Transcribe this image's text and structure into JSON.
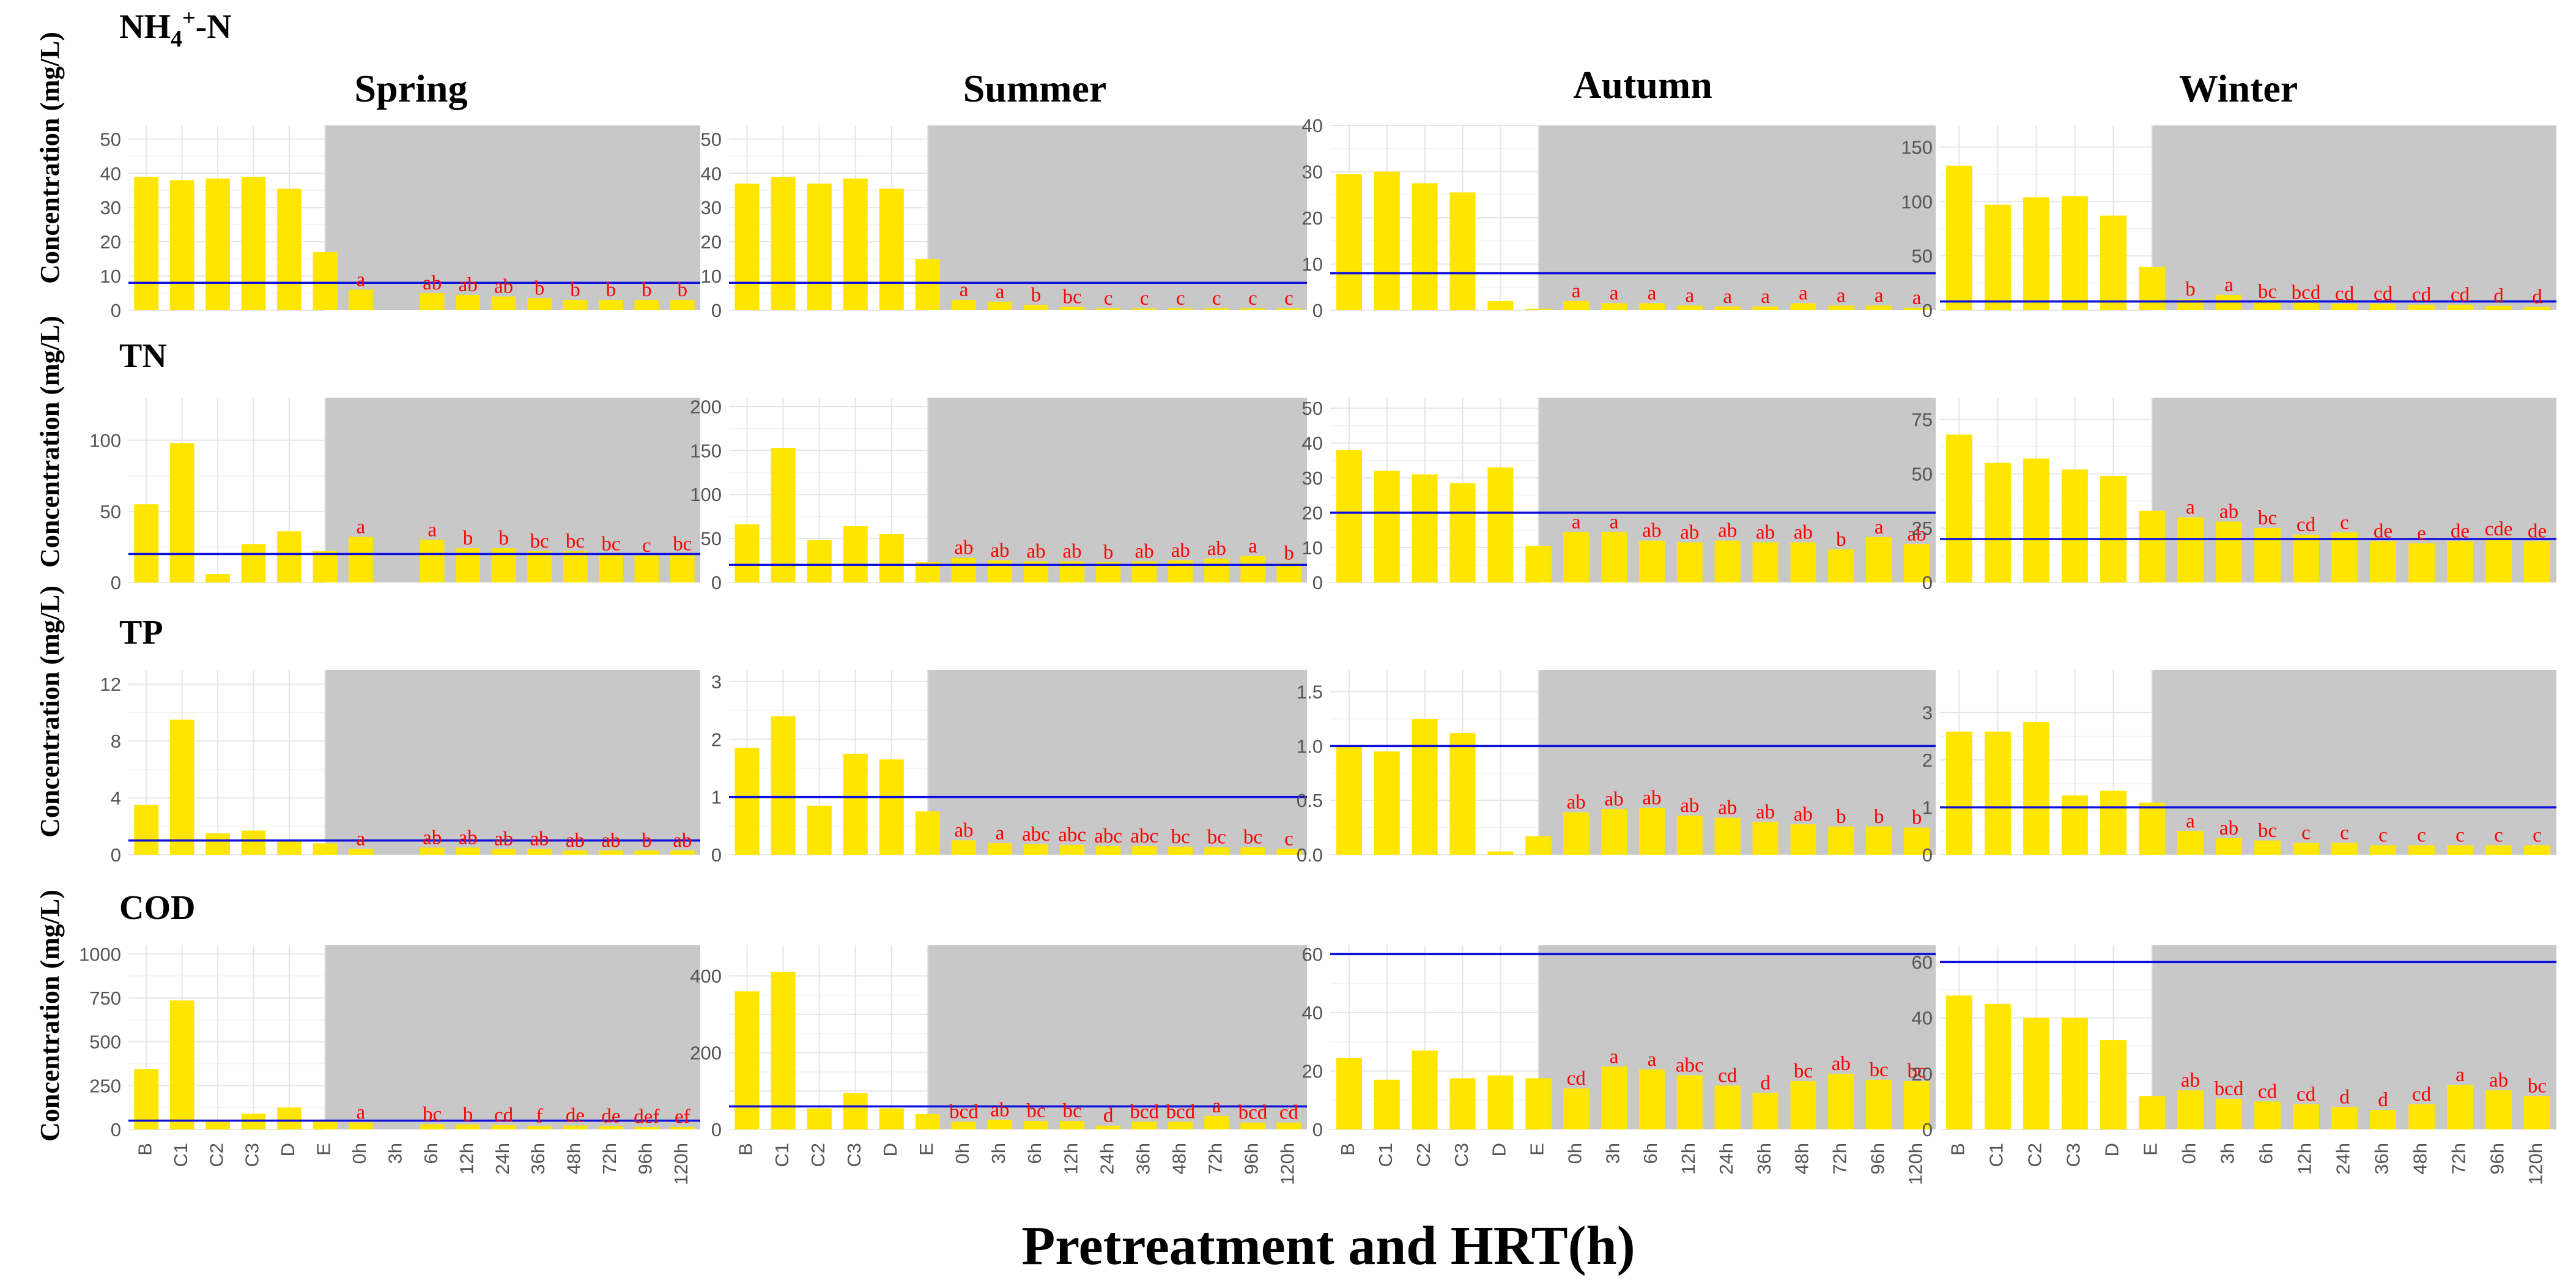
{
  "figure": {
    "seasons": [
      "Spring",
      "Summer",
      "Autumn",
      "Winter"
    ],
    "xlabel": "Pretreatment and HRT(h)",
    "ylabel": "Concentration (mg/L)"
  },
  "colors": {
    "bar": "#ffe600",
    "shade": "#c8c8c8",
    "threshold": "#1010dd",
    "letter": "#ff0000",
    "grid": "#e6e6e6"
  },
  "chart_data": [
    {
      "type": "bar",
      "title": "NH4+-N",
      "categories": [
        "B",
        "C1",
        "C2",
        "C3",
        "D",
        "E",
        "0h",
        "3h",
        "6h",
        "12h",
        "24h",
        "36h",
        "48h",
        "72h",
        "96h",
        "120h"
      ],
      "panels": [
        {
          "season": "Spring",
          "ylim": [
            0,
            54
          ],
          "yticks": [
            0,
            10,
            20,
            30,
            40,
            50
          ],
          "threshold": 8,
          "values": [
            39,
            38,
            38.5,
            39,
            35.5,
            17,
            6,
            0,
            5,
            4.5,
            4,
            3.5,
            3,
            3,
            3,
            3
          ],
          "letters": [
            "",
            "",
            "",
            "",
            "",
            "",
            "a",
            "",
            "ab",
            "ab",
            "ab",
            "b",
            "b",
            "b",
            "b",
            "b"
          ]
        },
        {
          "season": "Summer",
          "ylim": [
            0,
            54
          ],
          "yticks": [
            0,
            10,
            20,
            30,
            40,
            50
          ],
          "threshold": 8,
          "values": [
            37,
            39,
            37,
            38.5,
            35.5,
            15,
            3,
            2.5,
            1.5,
            1,
            0.5,
            0.5,
            0.5,
            0.5,
            0.5,
            0.5
          ],
          "letters": [
            "",
            "",
            "",
            "",
            "",
            "",
            "a",
            "a",
            "b",
            "bc",
            "c",
            "c",
            "c",
            "c",
            "c",
            "c"
          ]
        },
        {
          "season": "Autumn",
          "ylim": [
            0,
            40
          ],
          "yticks": [
            0,
            10,
            20,
            30,
            40
          ],
          "threshold": 8,
          "values": [
            29.5,
            30,
            27.5,
            25.5,
            2,
            0.3,
            2,
            1.5,
            1.5,
            1,
            0.8,
            0.8,
            1.5,
            1,
            1,
            0.5
          ],
          "letters": [
            "",
            "",
            "",
            "",
            "",
            "",
            "a",
            "a",
            "a",
            "a",
            "a",
            "a",
            "a",
            "a",
            "a",
            "a"
          ]
        },
        {
          "season": "Winter",
          "ylim": [
            0,
            170
          ],
          "yticks": [
            0,
            50,
            100,
            150
          ],
          "threshold": 8,
          "values": [
            133,
            97,
            104,
            105,
            87,
            40,
            10,
            14,
            8,
            7,
            6,
            6,
            5,
            5,
            4,
            3
          ],
          "letters": [
            "",
            "",
            "",
            "",
            "",
            "",
            "b",
            "a",
            "bc",
            "bcd",
            "cd",
            "cd",
            "cd",
            "cd",
            "d",
            "d"
          ]
        }
      ]
    },
    {
      "type": "bar",
      "title": "TN",
      "categories": [
        "B",
        "C1",
        "C2",
        "C3",
        "D",
        "E",
        "0h",
        "3h",
        "6h",
        "12h",
        "24h",
        "36h",
        "48h",
        "72h",
        "96h",
        "120h"
      ],
      "panels": [
        {
          "season": "Spring",
          "ylim": [
            0,
            130
          ],
          "yticks": [
            0,
            50,
            100
          ],
          "threshold": 20,
          "values": [
            55,
            98,
            6,
            27,
            36,
            22,
            32,
            0,
            30,
            24,
            24,
            22,
            22,
            20,
            19,
            20
          ],
          "letters": [
            "",
            "",
            "",
            "",
            "",
            "",
            "a",
            "",
            "a",
            "b",
            "b",
            "bc",
            "bc",
            "bc",
            "c",
            "bc"
          ]
        },
        {
          "season": "Summer",
          "ylim": [
            0,
            210
          ],
          "yticks": [
            0,
            50,
            100,
            150,
            200
          ],
          "threshold": 20,
          "values": [
            66,
            153,
            48,
            64,
            55,
            23,
            28,
            25,
            24,
            24,
            23,
            24,
            25,
            27,
            30,
            22
          ],
          "letters": [
            "",
            "",
            "",
            "",
            "",
            "",
            "ab",
            "ab",
            "ab",
            "ab",
            "b",
            "ab",
            "ab",
            "ab",
            "a",
            "b"
          ]
        },
        {
          "season": "Autumn",
          "ylim": [
            0,
            53
          ],
          "yticks": [
            0,
            10,
            20,
            30,
            40,
            50
          ],
          "threshold": 20,
          "values": [
            38,
            32,
            31,
            28.5,
            33,
            10.5,
            14.5,
            14.5,
            12,
            11.5,
            12,
            11.5,
            11.5,
            9.5,
            13,
            11
          ],
          "letters": [
            "",
            "",
            "",
            "",
            "",
            "",
            "a",
            "a",
            "ab",
            "ab",
            "ab",
            "ab",
            "ab",
            "b",
            "a",
            "ab"
          ]
        },
        {
          "season": "Winter",
          "ylim": [
            0,
            85
          ],
          "yticks": [
            0,
            25,
            50,
            75
          ],
          "threshold": 20,
          "values": [
            68,
            55,
            57,
            52,
            49,
            33,
            30,
            28,
            25,
            22,
            23,
            19,
            18,
            19,
            20,
            19
          ],
          "letters": [
            "",
            "",
            "",
            "",
            "",
            "",
            "a",
            "ab",
            "bc",
            "cd",
            "c",
            "de",
            "e",
            "de",
            "cde",
            "de"
          ]
        }
      ]
    },
    {
      "type": "bar",
      "title": "TP",
      "categories": [
        "B",
        "C1",
        "C2",
        "C3",
        "D",
        "E",
        "0h",
        "3h",
        "6h",
        "12h",
        "24h",
        "36h",
        "48h",
        "72h",
        "96h",
        "120h"
      ],
      "panels": [
        {
          "season": "Spring",
          "ylim": [
            0,
            13
          ],
          "yticks": [
            0,
            4,
            8,
            12
          ],
          "threshold": 1,
          "values": [
            3.5,
            9.5,
            1.5,
            1.7,
            1,
            0.8,
            0.4,
            0,
            0.5,
            0.5,
            0.4,
            0.4,
            0.3,
            0.3,
            0.3,
            0.3
          ],
          "letters": [
            "",
            "",
            "",
            "",
            "",
            "",
            "a",
            "",
            "ab",
            "ab",
            "ab",
            "ab",
            "ab",
            "ab",
            "b",
            "ab"
          ]
        },
        {
          "season": "Summer",
          "ylim": [
            0,
            3.2
          ],
          "yticks": [
            0,
            1,
            2,
            3
          ],
          "threshold": 1,
          "values": [
            1.85,
            2.4,
            0.85,
            1.75,
            1.65,
            0.75,
            0.25,
            0.2,
            0.18,
            0.17,
            0.15,
            0.15,
            0.14,
            0.13,
            0.13,
            0.1
          ],
          "letters": [
            "",
            "",
            "",
            "",
            "",
            "",
            "ab",
            "a",
            "abc",
            "abc",
            "abc",
            "abc",
            "bc",
            "bc",
            "bc",
            "c"
          ]
        },
        {
          "season": "Autumn",
          "ylim": [
            0,
            1.7
          ],
          "yticks": [
            0,
            0.5,
            1.0,
            1.5
          ],
          "yticklabels": [
            "0.0",
            "0.5",
            "1.0",
            "1.5"
          ],
          "threshold": 1,
          "values": [
            1.0,
            0.95,
            1.25,
            1.12,
            0.03,
            0.17,
            0.39,
            0.42,
            0.43,
            0.36,
            0.34,
            0.3,
            0.28,
            0.26,
            0.26,
            0.25
          ],
          "letters": [
            "",
            "",
            "",
            "",
            "",
            "",
            "ab",
            "ab",
            "ab",
            "ab",
            "ab",
            "ab",
            "ab",
            "b",
            "b",
            "b"
          ]
        },
        {
          "season": "Winter",
          "ylim": [
            0,
            3.9
          ],
          "yticks": [
            0,
            1,
            2,
            3
          ],
          "threshold": 1,
          "values": [
            2.6,
            2.6,
            2.8,
            1.25,
            1.35,
            1.1,
            0.5,
            0.35,
            0.3,
            0.25,
            0.25,
            0.2,
            0.2,
            0.2,
            0.2,
            0.2
          ],
          "letters": [
            "",
            "",
            "",
            "",
            "",
            "",
            "a",
            "ab",
            "bc",
            "c",
            "c",
            "c",
            "c",
            "c",
            "c",
            "c"
          ]
        }
      ]
    },
    {
      "type": "bar",
      "title": "COD",
      "categories": [
        "B",
        "C1",
        "C2",
        "C3",
        "D",
        "E",
        "0h",
        "3h",
        "6h",
        "12h",
        "24h",
        "36h",
        "48h",
        "72h",
        "96h",
        "120h"
      ],
      "panels": [
        {
          "season": "Spring",
          "ylim": [
            0,
            1050
          ],
          "yticks": [
            0,
            250,
            500,
            750,
            1000
          ],
          "threshold": 50,
          "values": [
            345,
            735,
            50,
            90,
            125,
            52,
            40,
            0,
            30,
            28,
            25,
            20,
            22,
            20,
            15,
            15
          ],
          "letters": [
            "",
            "",
            "",
            "",
            "",
            "",
            "a",
            "",
            "bc",
            "b",
            "cd",
            "f",
            "de",
            "de",
            "def",
            "ef"
          ]
        },
        {
          "season": "Summer",
          "ylim": [
            0,
            480
          ],
          "yticks": [
            0,
            100,
            200,
            300,
            400
          ],
          "yticklabels": [
            "0",
            "",
            "200",
            "",
            "400"
          ],
          "threshold": 60,
          "values": [
            360,
            410,
            55,
            95,
            55,
            40,
            20,
            25,
            22,
            22,
            10,
            20,
            20,
            35,
            18,
            18
          ],
          "letters": [
            "",
            "",
            "",
            "",
            "",
            "",
            "bcd",
            "ab",
            "bc",
            "bc",
            "d",
            "bcd",
            "bcd",
            "a",
            "bcd",
            "cd"
          ]
        },
        {
          "season": "Autumn",
          "ylim": [
            0,
            63
          ],
          "yticks": [
            0,
            20,
            40,
            60
          ],
          "threshold": 60,
          "values": [
            24.5,
            17,
            27,
            17.5,
            18.5,
            17.5,
            14,
            21.5,
            20.5,
            18.5,
            15,
            12.5,
            16.5,
            19,
            17,
            16.5
          ],
          "letters": [
            "",
            "",
            "",
            "",
            "",
            "",
            "cd",
            "a",
            "a",
            "abc",
            "cd",
            "d",
            "bc",
            "ab",
            "bc",
            "bc"
          ]
        },
        {
          "season": "Winter",
          "ylim": [
            0,
            66
          ],
          "yticks": [
            0,
            20,
            40,
            60
          ],
          "threshold": 60,
          "values": [
            48,
            45,
            40,
            40,
            32,
            12,
            14,
            11,
            10,
            9,
            8,
            7,
            9,
            16,
            14,
            12
          ],
          "letters": [
            "",
            "",
            "",
            "",
            "",
            "",
            "ab",
            "bcd",
            "cd",
            "cd",
            "d",
            "d",
            "cd",
            "a",
            "ab",
            "bc"
          ]
        }
      ]
    }
  ]
}
